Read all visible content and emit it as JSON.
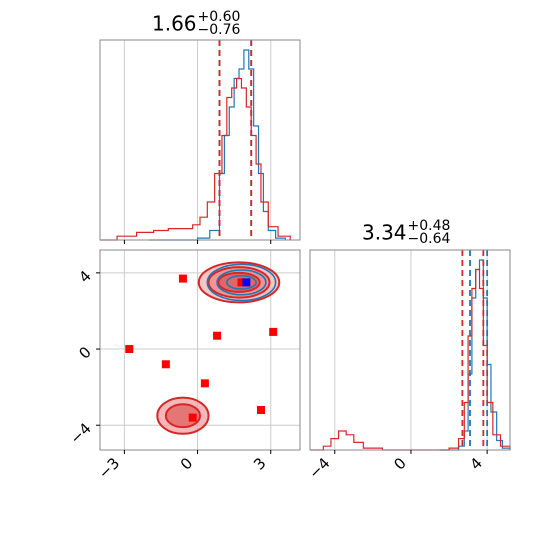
{
  "chart_data": [
    {
      "type": "histogram",
      "panel": "top-left",
      "title": {
        "value": "1.66",
        "plus": "+0.60",
        "minus": "−0.76"
      },
      "xlim": [
        -4.0,
        4.2
      ],
      "series": [
        {
          "color": "#1f77b4",
          "quantile_lines": [
            0.9,
            2.2
          ],
          "bins": [
            [
              -2.0,
              0.0
            ],
            [
              -1.0,
              0.0
            ],
            [
              0.0,
              0.01
            ],
            [
              0.5,
              0.05
            ],
            [
              0.9,
              0.35
            ],
            [
              1.1,
              0.55
            ],
            [
              1.3,
              0.7
            ],
            [
              1.5,
              0.85
            ],
            [
              1.7,
              0.9
            ],
            [
              1.9,
              1.0
            ],
            [
              2.1,
              0.9
            ],
            [
              2.3,
              0.6
            ],
            [
              2.5,
              0.35
            ],
            [
              2.7,
              0.15
            ],
            [
              2.9,
              0.05
            ],
            [
              3.2,
              0.01
            ],
            [
              3.6,
              0.0
            ]
          ]
        },
        {
          "color": "#d62728",
          "quantile_lines": [
            0.9,
            2.2
          ],
          "bins": [
            [
              -4.0,
              0.0
            ],
            [
              -3.3,
              0.02
            ],
            [
              -2.5,
              0.04
            ],
            [
              -1.8,
              0.05
            ],
            [
              -1.2,
              0.06
            ],
            [
              -0.6,
              0.06
            ],
            [
              -0.2,
              0.08
            ],
            [
              0.1,
              0.12
            ],
            [
              0.4,
              0.2
            ],
            [
              0.7,
              0.35
            ],
            [
              1.0,
              0.55
            ],
            [
              1.2,
              0.75
            ],
            [
              1.4,
              0.8
            ],
            [
              1.6,
              0.85
            ],
            [
              1.8,
              0.8
            ],
            [
              2.0,
              0.7
            ],
            [
              2.2,
              0.55
            ],
            [
              2.4,
              0.4
            ],
            [
              2.6,
              0.2
            ],
            [
              2.9,
              0.07
            ],
            [
              3.3,
              0.02
            ],
            [
              3.8,
              0.0
            ]
          ]
        }
      ],
      "ticks": [
        -3,
        0,
        3
      ],
      "grid": true
    },
    {
      "type": "contour",
      "panel": "bottom-left",
      "xlim": [
        -4.0,
        4.2
      ],
      "ylim": [
        -5.3,
        5.2
      ],
      "xticks": [
        -3,
        0,
        3
      ],
      "yticks": [
        -4,
        0,
        4
      ],
      "xtick_labels": [
        "−3",
        "0",
        "3"
      ],
      "ytick_labels": [
        "−4",
        "0",
        "4"
      ],
      "grid": true,
      "red_points": [
        [
          -2.8,
          0.0
        ],
        [
          -1.3,
          -0.8
        ],
        [
          -0.6,
          3.7
        ],
        [
          -0.2,
          -3.6
        ],
        [
          0.3,
          -1.8
        ],
        [
          0.8,
          0.7
        ],
        [
          2.6,
          -3.2
        ],
        [
          3.1,
          0.9
        ],
        [
          1.8,
          3.5
        ]
      ],
      "blue_points": [
        [
          2.0,
          3.5
        ]
      ],
      "red_contours": [
        {
          "cx": 1.7,
          "cy": 3.5,
          "rx": 1.65,
          "ry": 1.05
        },
        {
          "cx": 1.7,
          "cy": 3.5,
          "rx": 1.25,
          "ry": 0.8
        },
        {
          "cx": 1.7,
          "cy": 3.5,
          "rx": 0.85,
          "ry": 0.5
        },
        {
          "cx": -0.6,
          "cy": -3.5,
          "rx": 1.05,
          "ry": 0.95
        },
        {
          "cx": -0.6,
          "cy": -3.5,
          "rx": 0.7,
          "ry": 0.6
        }
      ],
      "blue_contours": [
        {
          "cx": 1.8,
          "cy": 3.5,
          "rx": 1.4,
          "ry": 0.95
        },
        {
          "cx": 1.8,
          "cy": 3.5,
          "rx": 1.0,
          "ry": 0.65
        },
        {
          "cx": 1.8,
          "cy": 3.5,
          "rx": 0.6,
          "ry": 0.35
        }
      ]
    },
    {
      "type": "histogram",
      "panel": "bottom-right",
      "title": {
        "value": "3.34",
        "plus": "+0.48",
        "minus": "−0.64"
      },
      "xlim": [
        -5.3,
        5.2
      ],
      "xticks": [
        -4,
        0,
        4
      ],
      "xtick_labels": [
        "−4",
        "0",
        "4"
      ],
      "grid": true,
      "series": [
        {
          "color": "#1f77b4",
          "quantile_lines": [
            3.1,
            4.0
          ],
          "bins": [
            [
              1.5,
              0.0
            ],
            [
              2.5,
              0.02
            ],
            [
              2.8,
              0.1
            ],
            [
              3.0,
              0.4
            ],
            [
              3.2,
              0.8
            ],
            [
              3.4,
              0.95
            ],
            [
              3.6,
              1.0
            ],
            [
              3.8,
              0.8
            ],
            [
              4.0,
              0.45
            ],
            [
              4.2,
              0.2
            ],
            [
              4.5,
              0.05
            ],
            [
              4.8,
              0.01
            ],
            [
              5.2,
              0.0
            ]
          ]
        },
        {
          "color": "#d62728",
          "quantile_lines": [
            2.7,
            3.8
          ],
          "bins": [
            [
              -5.3,
              0.0
            ],
            [
              -4.6,
              0.02
            ],
            [
              -4.2,
              0.06
            ],
            [
              -3.8,
              0.1
            ],
            [
              -3.4,
              0.08
            ],
            [
              -3.0,
              0.04
            ],
            [
              -2.5,
              0.01
            ],
            [
              -1.5,
              0.0
            ],
            [
              2.0,
              0.01
            ],
            [
              2.5,
              0.06
            ],
            [
              2.8,
              0.25
            ],
            [
              3.0,
              0.6
            ],
            [
              3.2,
              0.85
            ],
            [
              3.4,
              0.95
            ],
            [
              3.6,
              0.85
            ],
            [
              3.8,
              0.55
            ],
            [
              4.0,
              0.25
            ],
            [
              4.3,
              0.08
            ],
            [
              4.7,
              0.02
            ],
            [
              5.2,
              0.0
            ]
          ]
        }
      ]
    }
  ]
}
